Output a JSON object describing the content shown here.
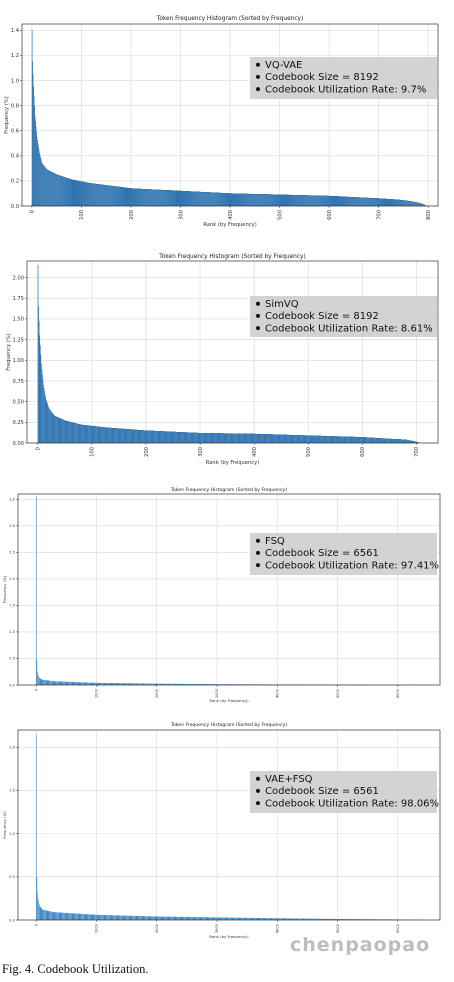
{
  "chart_data": [
    {
      "type": "bar",
      "title": "Token Frequency Histogram (Sorted by Frequency)",
      "xlabel": "Rank (by Frequency)",
      "ylabel": "Frequency (%)",
      "xlim": [
        -20,
        820
      ],
      "ylim": [
        0,
        1.45
      ],
      "xticks": [
        0,
        100,
        200,
        300,
        400,
        500,
        600,
        700,
        800
      ],
      "yticks": [
        0.0,
        0.2,
        0.4,
        0.6,
        0.8,
        1.0,
        1.2,
        1.4
      ],
      "n_bars": 795,
      "curve": [
        [
          0,
          1.4
        ],
        [
          1,
          1.15
        ],
        [
          3,
          0.95
        ],
        [
          6,
          0.72
        ],
        [
          10,
          0.55
        ],
        [
          15,
          0.42
        ],
        [
          20,
          0.34
        ],
        [
          30,
          0.29
        ],
        [
          50,
          0.25
        ],
        [
          80,
          0.21
        ],
        [
          120,
          0.18
        ],
        [
          200,
          0.14
        ],
        [
          300,
          0.12
        ],
        [
          400,
          0.1
        ],
        [
          500,
          0.09
        ],
        [
          600,
          0.08
        ],
        [
          700,
          0.06
        ],
        [
          740,
          0.05
        ],
        [
          760,
          0.04
        ],
        [
          775,
          0.03
        ],
        [
          785,
          0.02
        ],
        [
          795,
          0.005
        ]
      ],
      "grid": true,
      "legend_position": "top-right",
      "legend": [
        "VQ-VAE",
        "Codebook Size = 8192",
        "Codebook Utilization Rate: 9.7%"
      ]
    },
    {
      "type": "bar",
      "title": "Token Frequency Histogram (Sorted by Frequency)",
      "xlabel": "Rank (by Frequency)",
      "ylabel": "Frequency (%)",
      "xlim": [
        -20,
        740
      ],
      "ylim": [
        0,
        2.2
      ],
      "xticks": [
        0,
        100,
        200,
        300,
        400,
        500,
        600,
        700
      ],
      "yticks": [
        0.0,
        0.25,
        0.5,
        0.75,
        1.0,
        1.25,
        1.5,
        1.75,
        2.0
      ],
      "tick_format": 2,
      "n_bars": 705,
      "curve": [
        [
          0,
          2.15
        ],
        [
          1,
          1.65
        ],
        [
          3,
          1.3
        ],
        [
          6,
          0.95
        ],
        [
          10,
          0.7
        ],
        [
          15,
          0.52
        ],
        [
          20,
          0.42
        ],
        [
          30,
          0.33
        ],
        [
          50,
          0.27
        ],
        [
          80,
          0.22
        ],
        [
          120,
          0.19
        ],
        [
          200,
          0.15
        ],
        [
          300,
          0.12
        ],
        [
          400,
          0.11
        ],
        [
          500,
          0.09
        ],
        [
          600,
          0.07
        ],
        [
          650,
          0.05
        ],
        [
          680,
          0.04
        ],
        [
          695,
          0.02
        ],
        [
          705,
          0.005
        ]
      ],
      "grid": true,
      "legend_position": "top-right",
      "legend": [
        "SimVQ",
        "Codebook Size = 8192",
        "Codebook Utilization Rate: 8.61%"
      ]
    },
    {
      "type": "bar",
      "title": "Token Frequency Histogram (Sorted by Frequency)",
      "xlabel": "Rank (by Frequency)",
      "ylabel": "Frequency (%)",
      "xlim": [
        -300,
        6700
      ],
      "ylim": [
        0,
        3.6
      ],
      "xticks": [
        0,
        1000,
        2000,
        3000,
        4000,
        5000,
        6000
      ],
      "yticks": [
        0.0,
        0.5,
        1.0,
        1.5,
        2.0,
        2.5,
        3.0,
        3.5
      ],
      "n_bars": 6391,
      "curve": [
        [
          0,
          3.55
        ],
        [
          2,
          1.2
        ],
        [
          5,
          0.75
        ],
        [
          10,
          0.4
        ],
        [
          20,
          0.22
        ],
        [
          50,
          0.13
        ],
        [
          100,
          0.1
        ],
        [
          300,
          0.07
        ],
        [
          1000,
          0.04
        ],
        [
          2000,
          0.025
        ],
        [
          3000,
          0.015
        ],
        [
          4000,
          0.01
        ],
        [
          5000,
          0.008
        ],
        [
          6000,
          0.005
        ],
        [
          6391,
          0.001
        ]
      ],
      "grid": true,
      "legend_position": "top-right",
      "legend": [
        "FSQ",
        "Codebook Size = 6561",
        "Codebook Utilization Rate: 97.41%"
      ]
    },
    {
      "type": "bar",
      "title": "Token Frequency Histogram (Sorted by Frequency)",
      "xlabel": "Rank (by Frequency)",
      "ylabel": "Frequency (%)",
      "xlim": [
        -300,
        6700
      ],
      "ylim": [
        0,
        2.2
      ],
      "xticks": [
        0,
        1000,
        2000,
        3000,
        4000,
        5000,
        6000
      ],
      "yticks": [
        0.0,
        0.5,
        1.0,
        1.5,
        2.0
      ],
      "n_bars": 6434,
      "curve": [
        [
          0,
          2.15
        ],
        [
          2,
          1.05
        ],
        [
          5,
          0.7
        ],
        [
          10,
          0.45
        ],
        [
          20,
          0.28
        ],
        [
          50,
          0.17
        ],
        [
          100,
          0.12
        ],
        [
          300,
          0.09
        ],
        [
          1000,
          0.06
        ],
        [
          2000,
          0.04
        ],
        [
          3000,
          0.03
        ],
        [
          4000,
          0.02
        ],
        [
          5000,
          0.012
        ],
        [
          6000,
          0.006
        ],
        [
          6434,
          0.001
        ]
      ],
      "grid": true,
      "legend_position": "top-right",
      "legend": [
        "VAE+FSQ",
        "Codebook Size = 6561",
        "Codebook Utilization Rate: 98.06%"
      ]
    }
  ],
  "caption": "Fig. 4.   Codebook Utilization.",
  "watermark": "chenpaopao",
  "colors": {
    "bar": "#3b84c4",
    "bar_edge": "#1f5f95",
    "legend_bg": "#d3d3d3",
    "grid": "#d9d9d9",
    "axes": "#333333"
  }
}
